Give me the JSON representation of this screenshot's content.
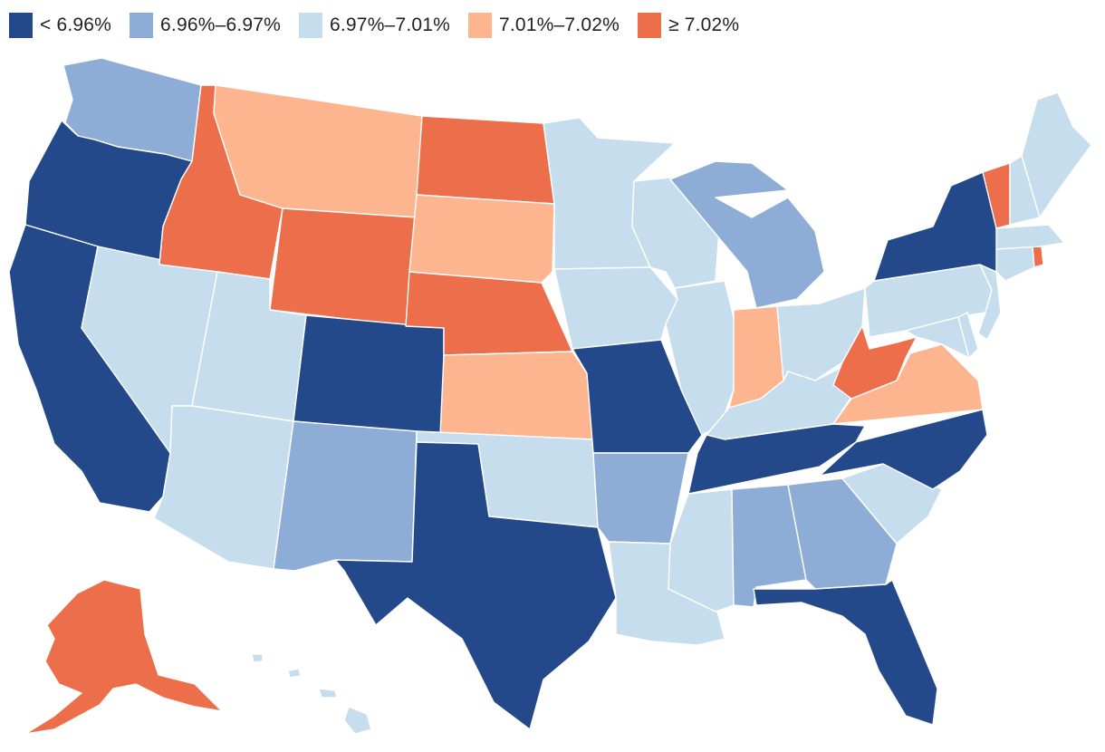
{
  "colors": {
    "lt_696": "#24498a",
    "r696_697": "#8eadd6",
    "r697_701": "#c6ddee",
    "r701_702": "#fdb590",
    "ge_702": "#ec6e4a"
  },
  "legend": [
    {
      "key": "lt_696",
      "label": "< 6.96%"
    },
    {
      "key": "r696_697",
      "label": "6.96%–6.97%"
    },
    {
      "key": "r697_701",
      "label": "6.97%–7.01%"
    },
    {
      "key": "r701_702",
      "label": "7.01%–7.02%"
    },
    {
      "key": "ge_702",
      "label": "≥ 7.02%"
    }
  ],
  "states": {
    "WA": "r696_697",
    "OR": "lt_696",
    "CA": "lt_696",
    "NV": "r697_701",
    "ID": "ge_702",
    "MT": "r701_702",
    "WY": "ge_702",
    "UT": "r697_701",
    "AZ": "r697_701",
    "CO": "lt_696",
    "NM": "r696_697",
    "ND": "ge_702",
    "SD": "r701_702",
    "NE": "ge_702",
    "KS": "r701_702",
    "OK": "r697_701",
    "TX": "lt_696",
    "MN": "r697_701",
    "IA": "r697_701",
    "MO": "lt_696",
    "AR": "r696_697",
    "LA": "r697_701",
    "WI": "r697_701",
    "IL": "r697_701",
    "MI": "r696_697",
    "IN": "r701_702",
    "OH": "r697_701",
    "KY": "r697_701",
    "TN": "lt_696",
    "MS": "r697_701",
    "AL": "r696_697",
    "GA": "r696_697",
    "FL": "lt_696",
    "SC": "r697_701",
    "NC": "lt_696",
    "VA": "r701_702",
    "WV": "ge_702",
    "MD": "r697_701",
    "DE": "r697_701",
    "PA": "r697_701",
    "NJ": "r697_701",
    "NY": "lt_696",
    "CT": "r697_701",
    "RI": "ge_702",
    "MA": "r697_701",
    "VT": "ge_702",
    "NH": "r697_701",
    "ME": "r697_701",
    "AK": "ge_702",
    "HI": "r697_701"
  }
}
